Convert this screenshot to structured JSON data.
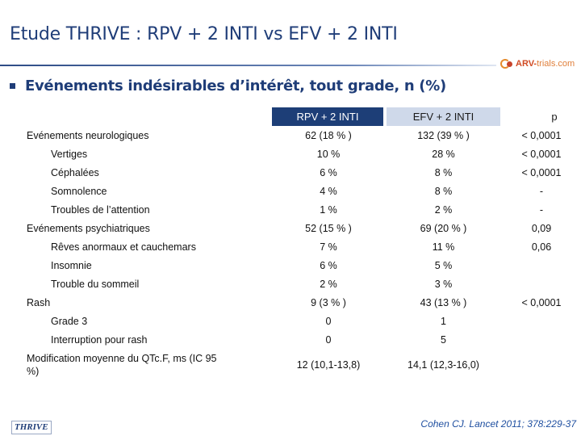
{
  "title": "Etude THRIVE : RPV + 2 INTI vs EFV + 2 INTI",
  "logo": {
    "brand": "ARV-",
    "suffix": "trials.com"
  },
  "subtitle": "Evénements indésirables d’intérêt, tout grade, n (%)",
  "table": {
    "headers": [
      "RPV + 2 INTI",
      "EFV + 2 INTI",
      "p"
    ],
    "rows": [
      {
        "label": "Evénements neurologiques",
        "level": 1,
        "rpv": "62 (18 % )",
        "efv": "132 (39 % )",
        "p": "< 0,0001"
      },
      {
        "label": "Vertiges",
        "level": 2,
        "rpv": "10 %",
        "efv": "28 %",
        "p": "< 0,0001"
      },
      {
        "label": "Céphalées",
        "level": 2,
        "rpv": "6 %",
        "efv": "8 %",
        "p": "< 0,0001"
      },
      {
        "label": "Somnolence",
        "level": 2,
        "rpv": "4 %",
        "efv": "8 %",
        "p": "-"
      },
      {
        "label": "Troubles de l’attention",
        "level": 2,
        "rpv": "1 %",
        "efv": "2 %",
        "p": "-"
      },
      {
        "label": "Evénements psychiatriques",
        "level": 1,
        "rpv": "52 (15 % )",
        "efv": "69 (20 % )",
        "p": "0,09"
      },
      {
        "label": "Rêves anormaux et cauchemars",
        "level": 2,
        "rpv": "7 %",
        "efv": "11 %",
        "p": "0,06"
      },
      {
        "label": "Insomnie",
        "level": 2,
        "rpv": "6 %",
        "efv": "5 %",
        "p": ""
      },
      {
        "label": "Trouble du sommeil",
        "level": 2,
        "rpv": "2 %",
        "efv": "3 %",
        "p": ""
      },
      {
        "label": "Rash",
        "level": 0,
        "rpv": "9 (3 % )",
        "efv": "43 (13 % )",
        "p": "< 0,0001"
      },
      {
        "label": "Grade 3",
        "level": 2,
        "rpv": "0",
        "efv": "1",
        "p": ""
      },
      {
        "label": "Interruption pour rash",
        "level": 2,
        "rpv": "0",
        "efv": "5",
        "p": ""
      }
    ],
    "qtc": {
      "label_line1": "Modification moyenne du QTc.F, ms (IC 95",
      "label_line2": "%)",
      "rpv": "12 (10,1-13,8)",
      "efv": "14,1 (12,3-16,0)",
      "p": ""
    }
  },
  "footer": {
    "study": "THRIVE",
    "citation": "Cohen CJ. Lancet 2011; 378:229-37"
  }
}
